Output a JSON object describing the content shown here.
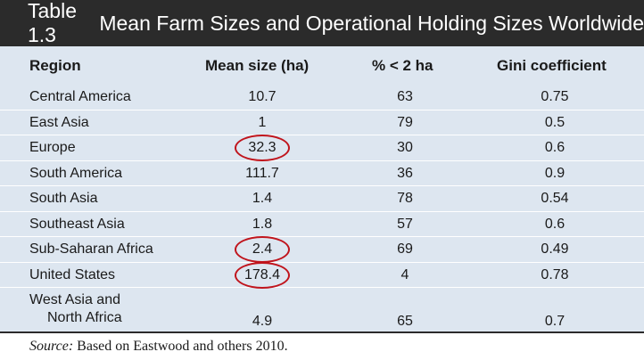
{
  "title": {
    "number": "Table 1.3",
    "text": "Mean Farm Sizes and Operational Holding Sizes Worldwide"
  },
  "columns": [
    "Region",
    "Mean size (ha)",
    "% < 2 ha",
    "Gini coefficient"
  ],
  "rows": [
    {
      "region": "Central America",
      "mean": "10.7",
      "pct": "63",
      "gini": "0.75"
    },
    {
      "region": "East Asia",
      "mean": "1",
      "pct": "79",
      "gini": "0.5"
    },
    {
      "region": "Europe",
      "mean": "32.3",
      "pct": "30",
      "gini": "0.6",
      "circled": true
    },
    {
      "region": "South America",
      "mean": "111.7",
      "pct": "36",
      "gini": "0.9"
    },
    {
      "region": "South Asia",
      "mean": "1.4",
      "pct": "78",
      "gini": "0.54"
    },
    {
      "region": "Southeast Asia",
      "mean": "1.8",
      "pct": "57",
      "gini": "0.6"
    },
    {
      "region": "Sub-Saharan Africa",
      "mean": "2.4",
      "pct": "69",
      "gini": "0.49",
      "circled": true
    },
    {
      "region": "United States",
      "mean": "178.4",
      "pct": "4",
      "gini": "0.78",
      "circled": true
    },
    {
      "region": "West Asia and",
      "region_line2": "North Africa",
      "mean": "4.9",
      "pct": "65",
      "gini": "0.7"
    }
  ],
  "source": {
    "label": "Source:",
    "text": " Based on Eastwood and others 2010."
  },
  "colors": {
    "title_bg": "#2b2b2b",
    "table_bg": "#dde6f0",
    "annotation": "#c0141c"
  }
}
